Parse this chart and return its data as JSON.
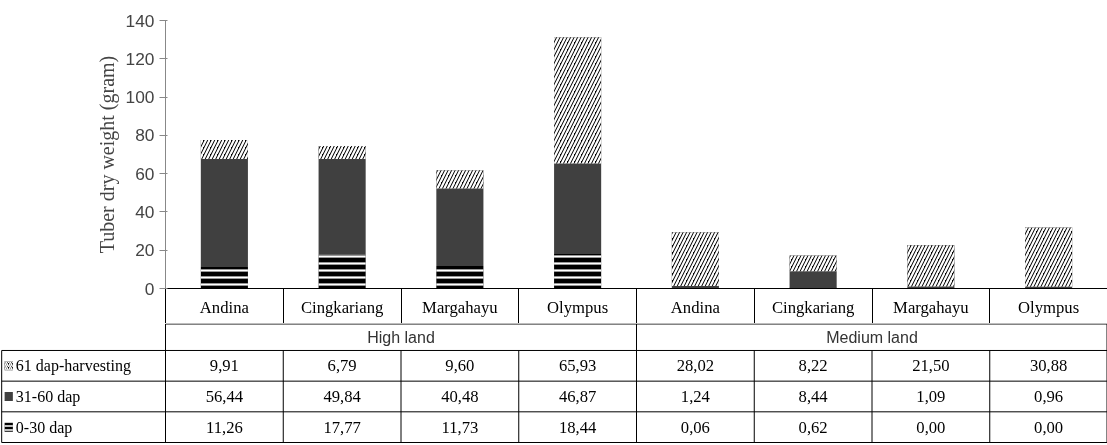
{
  "chart_data": {
    "type": "bar",
    "stacked": true,
    "ylabel": "Tuber dry weight (gram)",
    "categories": [
      "Andina",
      "Cingkariang",
      "Margahayu",
      "Olympus",
      "Andina",
      "Cingkariang",
      "Margahayu",
      "Olympus"
    ],
    "annotations": [
      "High land",
      "Medium land"
    ],
    "ylim": [
      0,
      140
    ],
    "yticks": [
      0,
      20,
      40,
      60,
      80,
      100,
      120,
      140
    ],
    "grid": false,
    "legend": "bottom left",
    "series": [
      {
        "name": "0-30 dap",
        "color": "#000000",
        "values": [
          11.26,
          17.77,
          11.73,
          18.44,
          0.06,
          0.62,
          0.0,
          0.0
        ],
        "value_labels": [
          "11,26",
          "17,77",
          "11,73",
          "18,44",
          "0,06",
          "0,62",
          "0,00",
          "0,00"
        ]
      },
      {
        "name": "31-60 dap",
        "color": "#404040",
        "values": [
          56.44,
          49.84,
          40.48,
          46.87,
          1.24,
          8.44,
          1.09,
          0.96
        ],
        "value_labels": [
          "56,44",
          "49,84",
          "40,48",
          "46,87",
          "1,24",
          "8,44",
          "1,09",
          "0,96"
        ]
      },
      {
        "name": "61 dap-harvesting",
        "color": "#000000",
        "values": [
          9.91,
          6.79,
          9.6,
          65.93,
          28.02,
          8.22,
          21.5,
          30.88
        ],
        "value_labels": [
          "9,91",
          "6,79",
          "9,60",
          "65,93",
          "28,02",
          "8,22",
          "21,50",
          "30,88"
        ]
      }
    ]
  }
}
